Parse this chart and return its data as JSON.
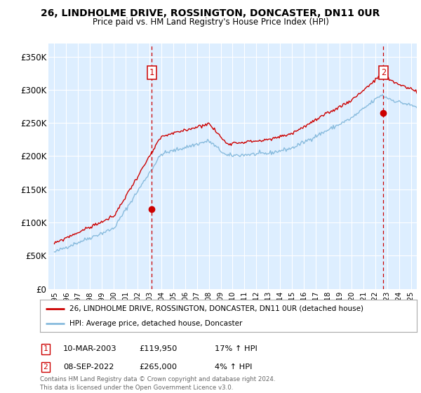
{
  "title": "26, LINDHOLME DRIVE, ROSSINGTON, DONCASTER, DN11 0UR",
  "subtitle": "Price paid vs. HM Land Registry's House Price Index (HPI)",
  "ylabel_ticks": [
    "£0",
    "£50K",
    "£100K",
    "£150K",
    "£200K",
    "£250K",
    "£300K",
    "£350K"
  ],
  "ytick_values": [
    0,
    50000,
    100000,
    150000,
    200000,
    250000,
    300000,
    350000
  ],
  "ylim": [
    0,
    370000
  ],
  "xlim_start": 1994.5,
  "xlim_end": 2025.5,
  "bg_color": "#ddeeff",
  "grid_color": "#ffffff",
  "hpi_color": "#88bbdd",
  "price_color": "#cc0000",
  "marker1_date": 2003.19,
  "marker1_price": 119950,
  "marker2_date": 2022.69,
  "marker2_price": 265000,
  "legend_line1": "26, LINDHOLME DRIVE, ROSSINGTON, DONCASTER, DN11 0UR (detached house)",
  "legend_line2": "HPI: Average price, detached house, Doncaster",
  "footer": "Contains HM Land Registry data © Crown copyright and database right 2024.\nThis data is licensed under the Open Government Licence v3.0.",
  "annot1_date": "10-MAR-2003",
  "annot1_price": "£119,950",
  "annot1_hpi": "17% ↑ HPI",
  "annot2_date": "08-SEP-2022",
  "annot2_price": "£265,000",
  "annot2_hpi": "4% ↑ HPI"
}
